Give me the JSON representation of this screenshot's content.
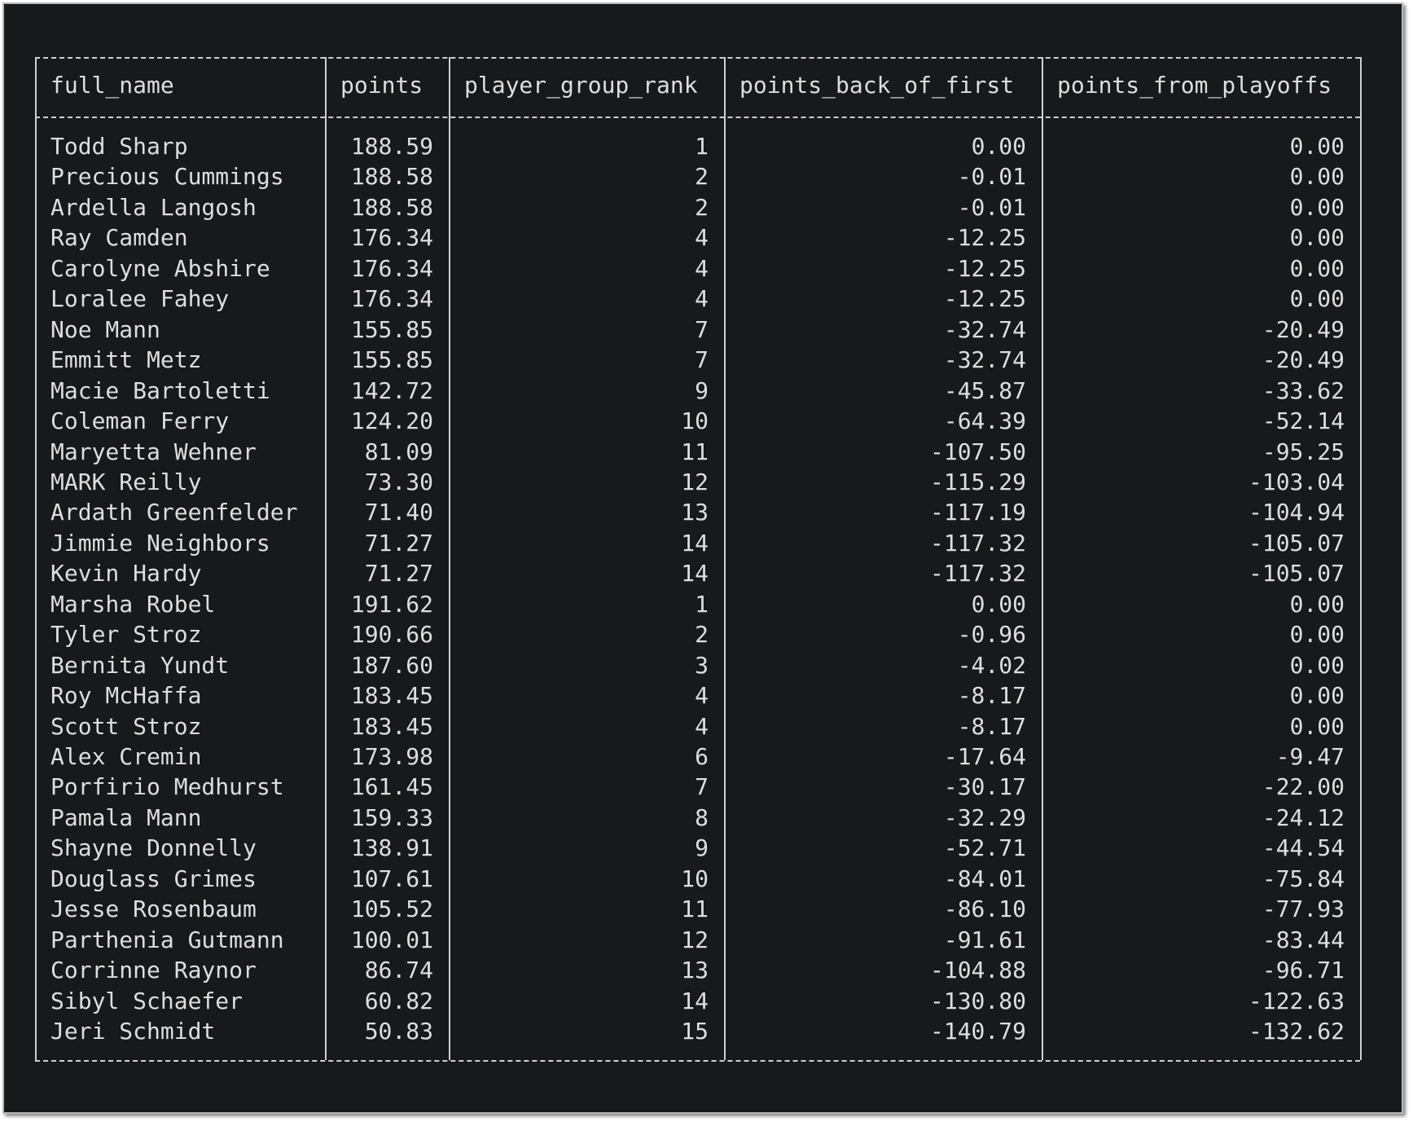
{
  "table": {
    "header": [
      "full_name",
      "points",
      "player_group_rank",
      "points_back_of_first",
      "points_from_playoffs"
    ],
    "rows": [
      [
        "Todd Sharp",
        "188.59",
        1,
        "0.00",
        "0.00"
      ],
      [
        "Precious Cummings",
        "188.58",
        2,
        "-0.01",
        "0.00"
      ],
      [
        "Ardella Langosh",
        "188.58",
        2,
        "-0.01",
        "0.00"
      ],
      [
        "Ray Camden",
        "176.34",
        4,
        "-12.25",
        "0.00"
      ],
      [
        "Carolyne Abshire",
        "176.34",
        4,
        "-12.25",
        "0.00"
      ],
      [
        "Loralee Fahey",
        "176.34",
        4,
        "-12.25",
        "0.00"
      ],
      [
        "Noe Mann",
        "155.85",
        7,
        "-32.74",
        "-20.49"
      ],
      [
        "Emmitt Metz",
        "155.85",
        7,
        "-32.74",
        "-20.49"
      ],
      [
        "Macie Bartoletti",
        "142.72",
        9,
        "-45.87",
        "-33.62"
      ],
      [
        "Coleman Ferry",
        "124.20",
        10,
        "-64.39",
        "-52.14"
      ],
      [
        "Maryetta Wehner",
        "81.09",
        11,
        "-107.50",
        "-95.25"
      ],
      [
        "MARK Reilly",
        "73.30",
        12,
        "-115.29",
        "-103.04"
      ],
      [
        "Ardath Greenfelder",
        "71.40",
        13,
        "-117.19",
        "-104.94"
      ],
      [
        "Jimmie Neighbors",
        "71.27",
        14,
        "-117.32",
        "-105.07"
      ],
      [
        "Kevin Hardy",
        "71.27",
        14,
        "-117.32",
        "-105.07"
      ],
      [
        "Marsha Robel",
        "191.62",
        1,
        "0.00",
        "0.00"
      ],
      [
        "Tyler Stroz",
        "190.66",
        2,
        "-0.96",
        "0.00"
      ],
      [
        "Bernita Yundt",
        "187.60",
        3,
        "-4.02",
        "0.00"
      ],
      [
        "Roy McHaffa",
        "183.45",
        4,
        "-8.17",
        "0.00"
      ],
      [
        "Scott Stroz",
        "183.45",
        4,
        "-8.17",
        "0.00"
      ],
      [
        "Alex Cremin",
        "173.98",
        6,
        "-17.64",
        "-9.47"
      ],
      [
        "Porfirio Medhurst",
        "161.45",
        7,
        "-30.17",
        "-22.00"
      ],
      [
        "Pamala Mann",
        "159.33",
        8,
        "-32.29",
        "-24.12"
      ],
      [
        "Shayne Donnelly",
        "138.91",
        9,
        "-52.71",
        "-44.54"
      ],
      [
        "Douglass Grimes",
        "107.61",
        10,
        "-84.01",
        "-75.84"
      ],
      [
        "Jesse Rosenbaum",
        "105.52",
        11,
        "-86.10",
        "-77.93"
      ],
      [
        "Parthenia Gutmann",
        "100.01",
        12,
        "-91.61",
        "-83.44"
      ],
      [
        "Corrinne Raynor",
        "86.74",
        13,
        "-104.88",
        "-96.71"
      ],
      [
        "Sibyl Schaefer",
        "60.82",
        14,
        "-130.80",
        "-122.63"
      ],
      [
        "Jeri Schmidt",
        "50.83",
        15,
        "-140.79",
        "-132.62"
      ]
    ]
  }
}
